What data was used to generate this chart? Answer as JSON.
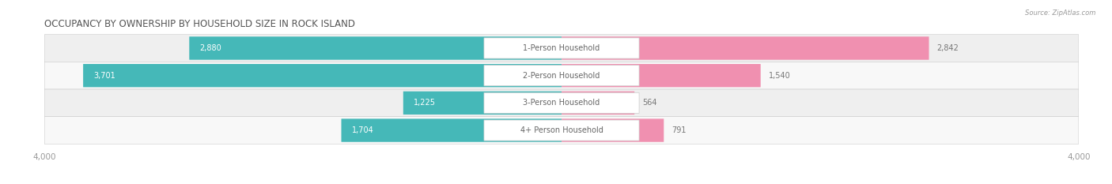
{
  "title": "OCCUPANCY BY OWNERSHIP BY HOUSEHOLD SIZE IN ROCK ISLAND",
  "source": "Source: ZipAtlas.com",
  "categories": [
    "1-Person Household",
    "2-Person Household",
    "3-Person Household",
    "4+ Person Household"
  ],
  "owner_values": [
    2880,
    3701,
    1225,
    1704
  ],
  "renter_values": [
    2842,
    1540,
    564,
    791
  ],
  "max_axis": 4000,
  "owner_color": "#45b8b8",
  "renter_color": "#f090b0",
  "row_bg_even": "#efefef",
  "row_bg_odd": "#f8f8f8",
  "label_bg_color": "#ffffff",
  "title_fontsize": 8.5,
  "tick_fontsize": 7.5,
  "label_fontsize": 7,
  "value_fontsize": 7,
  "legend_fontsize": 7.5,
  "axis_label": "4,000",
  "title_color": "#555555",
  "tick_color": "#999999",
  "value_white": "#ffffff",
  "value_gray": "#777777",
  "label_color": "#666666",
  "legend_label_color": "#555555"
}
